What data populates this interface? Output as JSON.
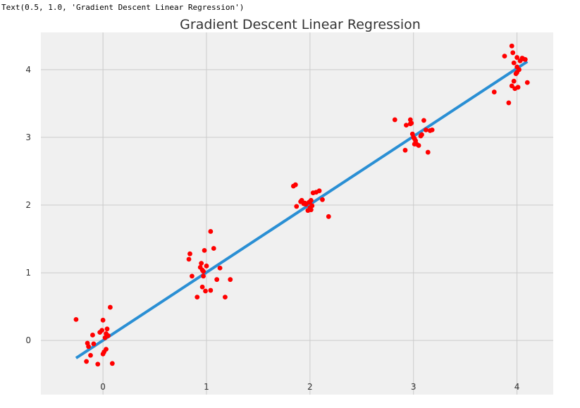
{
  "repr_text": "Text(0.5, 1.0, 'Gradient Descent Linear Regression')",
  "colors": {
    "background": "#f0f0f0",
    "grid": "#cbcbcb",
    "points": "#ff0000",
    "line": "#2a8fd4"
  },
  "chart_data": {
    "type": "scatter",
    "title": "Gradient Descent Linear Regression",
    "xlabel": "",
    "ylabel": "",
    "xlim": [
      -0.6,
      4.35
    ],
    "ylim": [
      -0.8,
      4.55
    ],
    "xticks": [
      0,
      1,
      2,
      3,
      4
    ],
    "yticks": [
      0,
      1,
      2,
      3,
      4
    ],
    "grid": true,
    "series": [
      {
        "kind": "scatter",
        "points": [
          [
            -0.26,
            0.31
          ],
          [
            -0.16,
            -0.31
          ],
          [
            -0.15,
            -0.04
          ],
          [
            -0.14,
            -0.09
          ],
          [
            -0.12,
            -0.22
          ],
          [
            -0.1,
            0.08
          ],
          [
            -0.09,
            -0.05
          ],
          [
            -0.05,
            -0.35
          ],
          [
            -0.03,
            0.12
          ],
          [
            -0.01,
            0.15
          ],
          [
            0.0,
            0.3
          ],
          [
            0.0,
            -0.2
          ],
          [
            0.01,
            -0.17
          ],
          [
            0.02,
            0.04
          ],
          [
            0.03,
            0.1
          ],
          [
            0.03,
            -0.13
          ],
          [
            0.04,
            0.17
          ],
          [
            0.07,
            0.49
          ],
          [
            0.09,
            -0.34
          ],
          [
            0.05,
            0.07
          ],
          [
            0.83,
            1.2
          ],
          [
            0.84,
            1.28
          ],
          [
            0.86,
            0.95
          ],
          [
            0.91,
            0.64
          ],
          [
            0.94,
            1.08
          ],
          [
            0.95,
            1.14
          ],
          [
            0.96,
            1.04
          ],
          [
            0.96,
            0.79
          ],
          [
            0.97,
            1.02
          ],
          [
            0.97,
            0.95
          ],
          [
            0.98,
            1.33
          ],
          [
            0.99,
            0.73
          ],
          [
            1.04,
            0.74
          ],
          [
            1.04,
            1.61
          ],
          [
            1.07,
            1.36
          ],
          [
            1.1,
            0.9
          ],
          [
            1.13,
            1.07
          ],
          [
            1.18,
            0.64
          ],
          [
            1.23,
            0.9
          ],
          [
            1.0,
            1.1
          ],
          [
            1.84,
            2.28
          ],
          [
            1.86,
            2.3
          ],
          [
            1.87,
            1.98
          ],
          [
            1.91,
            2.05
          ],
          [
            1.92,
            2.07
          ],
          [
            1.94,
            2.02
          ],
          [
            1.96,
            2.01
          ],
          [
            1.98,
            1.92
          ],
          [
            1.99,
            2.04
          ],
          [
            2.0,
            1.96
          ],
          [
            2.0,
            2.05
          ],
          [
            2.01,
            2.07
          ],
          [
            2.02,
            1.99
          ],
          [
            2.03,
            2.18
          ],
          [
            2.06,
            2.19
          ],
          [
            2.09,
            2.21
          ],
          [
            2.12,
            2.08
          ],
          [
            2.18,
            1.83
          ],
          [
            1.95,
            2.03
          ],
          [
            2.01,
            1.93
          ],
          [
            2.82,
            3.26
          ],
          [
            2.92,
            2.81
          ],
          [
            2.93,
            3.18
          ],
          [
            2.97,
            3.26
          ],
          [
            2.98,
            3.21
          ],
          [
            2.99,
            3.05
          ],
          [
            3.0,
            3.0
          ],
          [
            3.01,
            2.9
          ],
          [
            3.02,
            2.95
          ],
          [
            3.03,
            2.9
          ],
          [
            3.05,
            2.88
          ],
          [
            3.08,
            3.04
          ],
          [
            3.1,
            3.25
          ],
          [
            3.12,
            3.11
          ],
          [
            3.14,
            2.78
          ],
          [
            3.16,
            3.1
          ],
          [
            3.18,
            3.11
          ],
          [
            3.01,
            2.98
          ],
          [
            2.97,
            3.2
          ],
          [
            3.07,
            3.02
          ],
          [
            3.78,
            3.67
          ],
          [
            3.88,
            4.2
          ],
          [
            3.92,
            3.51
          ],
          [
            3.95,
            4.35
          ],
          [
            3.96,
            4.25
          ],
          [
            3.97,
            4.1
          ],
          [
            3.98,
            3.72
          ],
          [
            3.99,
            3.94
          ],
          [
            4.0,
            4.18
          ],
          [
            4.0,
            3.96
          ],
          [
            4.01,
            3.74
          ],
          [
            4.02,
            4.0
          ],
          [
            4.05,
            4.17
          ],
          [
            4.06,
            4.16
          ],
          [
            4.08,
            4.15
          ],
          [
            4.1,
            3.81
          ],
          [
            3.97,
            3.83
          ],
          [
            4.03,
            4.13
          ],
          [
            3.95,
            3.76
          ],
          [
            4.0,
            4.04
          ]
        ]
      },
      {
        "kind": "line",
        "points": [
          [
            -0.26,
            -0.26
          ],
          [
            4.1,
            4.12
          ]
        ]
      }
    ]
  }
}
